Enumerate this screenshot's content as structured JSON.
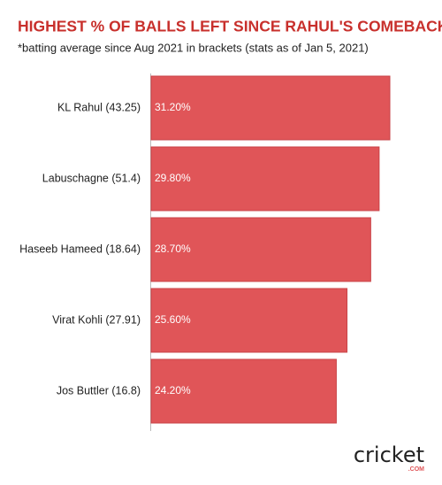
{
  "chart_data": {
    "type": "bar",
    "orientation": "horizontal",
    "title": "HIGHEST % OF BALLS LEFT SINCE RAHUL'S COMEBACK",
    "subtitle": "*batting average since Aug 2021 in brackets (stats as of Jan 5, 2021)",
    "categories": [
      "KL Rahul (43.25)",
      "Labuschagne (51.4)",
      "Haseeb Hameed (18.64)",
      "Virat Kohli (27.91)",
      "Jos Buttler (16.8)"
    ],
    "values": [
      31.2,
      29.8,
      28.7,
      25.6,
      24.2
    ],
    "value_labels": [
      "31.20%",
      "29.80%",
      "28.70%",
      "25.60%",
      "24.20%"
    ],
    "color": "#e05558",
    "logo": {
      "text": "cricket",
      "suffix": ".COM"
    }
  }
}
